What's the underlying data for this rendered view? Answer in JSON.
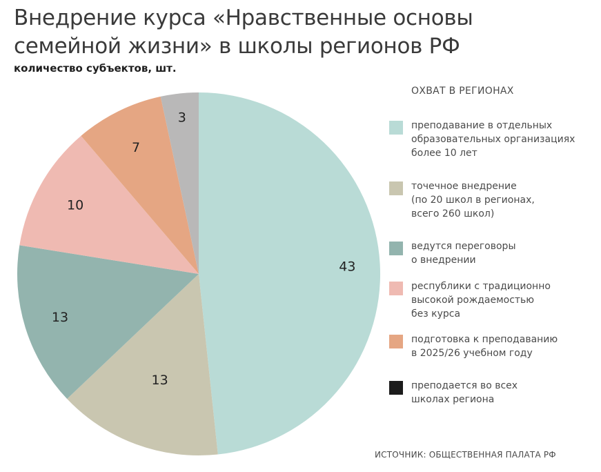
{
  "chart_data": {
    "type": "pie",
    "title": "Внедрение курса «Нравственные основы семейной жизни» в школы регионов РФ",
    "subtitle": "количество субъектов, шт.",
    "legend_title": "ОХВАТ В РЕГИОНАХ",
    "source": "ИСТОЧНИК: ОБЩЕСТВЕННАЯ ПАЛАТА РФ",
    "slices": [
      {
        "label": "преподавание в отдельных\nобразовательных организациях\nболее 10 лет",
        "value": 43,
        "color": "#b9dbd6"
      },
      {
        "label": "точечное внедрение\n(по 20 школ в регионах,\nвсего 260 школ)",
        "value": 13,
        "color": "#c9c6b0"
      },
      {
        "label": "ведутся переговоры\nо внедрении",
        "value": 13,
        "color": "#93b4ae"
      },
      {
        "label": "республики с традиционно\nвысокой рождаемостью\nбез курса",
        "value": 10,
        "color": "#efbab2"
      },
      {
        "label": "подготовка к преподаванию\nв 2025/26 учебном году",
        "value": 7,
        "color": "#e5a683"
      },
      {
        "label": "преподается во всех\nшколах региона",
        "value": 0,
        "color": "#1c1c1c"
      }
    ],
    "extra_slices": [
      {
        "value": 3,
        "color": "#b9b8b8"
      }
    ]
  }
}
